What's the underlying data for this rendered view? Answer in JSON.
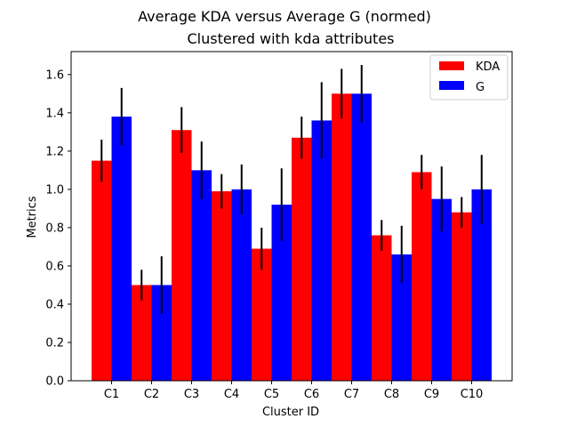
{
  "chart_data": {
    "type": "bar",
    "title": "Average KDA versus Average G (normed)",
    "subtitle": "Clustered with kda attributes",
    "xlabel": "Cluster ID",
    "ylabel": "Metrics",
    "ylim": [
      0,
      1.72
    ],
    "yticks": [
      0.0,
      0.2,
      0.4,
      0.6,
      0.8,
      1.0,
      1.2,
      1.4,
      1.6
    ],
    "ytick_labels": [
      "0.0",
      "0.2",
      "0.4",
      "0.6",
      "0.8",
      "1.0",
      "1.2",
      "1.4",
      "1.6"
    ],
    "grid": false,
    "legend_position": "top-right",
    "categories": [
      "C1",
      "C2",
      "C3",
      "C4",
      "C5",
      "C6",
      "C7",
      "C8",
      "C9",
      "C10"
    ],
    "series": [
      {
        "name": "KDA",
        "color": "#ff0000",
        "values": [
          1.15,
          0.5,
          1.31,
          0.99,
          0.69,
          1.27,
          1.5,
          0.76,
          1.09,
          0.88
        ],
        "errors": [
          0.11,
          0.08,
          0.12,
          0.09,
          0.11,
          0.11,
          0.13,
          0.08,
          0.09,
          0.08
        ]
      },
      {
        "name": "G",
        "color": "#0000ff",
        "values": [
          1.38,
          0.5,
          1.1,
          1.0,
          0.92,
          1.36,
          1.5,
          0.66,
          0.95,
          1.0
        ],
        "errors": [
          0.15,
          0.15,
          0.15,
          0.13,
          0.19,
          0.2,
          0.15,
          0.15,
          0.17,
          0.18
        ]
      }
    ]
  }
}
